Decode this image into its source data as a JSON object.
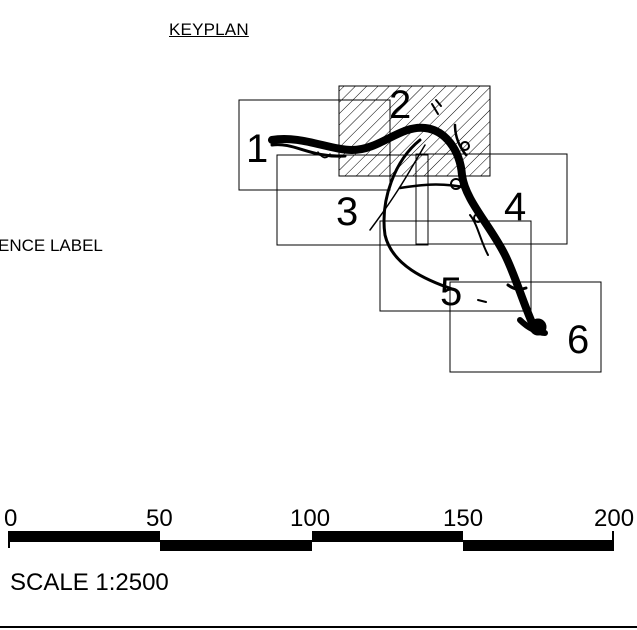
{
  "drawing": {
    "title": "KEYPLAN",
    "reference_label": "ENCE LABEL",
    "sheets": [
      {
        "label": "1",
        "highlighted": false
      },
      {
        "label": "2",
        "highlighted": true
      },
      {
        "label": "3",
        "highlighted": false
      },
      {
        "label": "4",
        "highlighted": false
      },
      {
        "label": "5",
        "highlighted": false
      },
      {
        "label": "6",
        "highlighted": false
      }
    ]
  },
  "scale_bar": {
    "ticks": [
      "0",
      "50",
      "100",
      "150",
      "200"
    ],
    "scale_text": "SCALE 1:2500"
  }
}
